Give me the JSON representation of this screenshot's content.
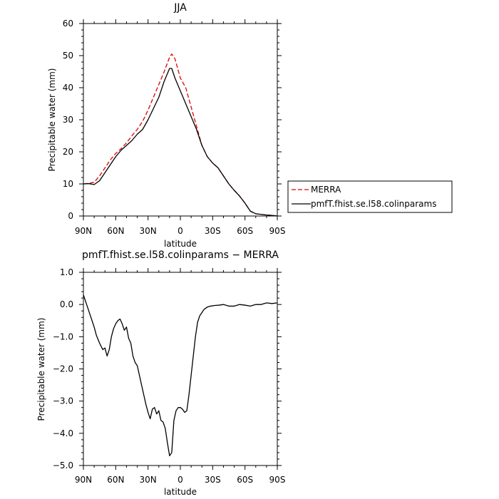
{
  "chart_data": [
    {
      "type": "line",
      "title": "JJA",
      "xlabel": "latitude",
      "ylabel": "Precipitable water (mm)",
      "xlim": [
        90,
        -90
      ],
      "ylim": [
        0,
        60
      ],
      "x_ticks": [
        90,
        60,
        30,
        0,
        -30,
        -60,
        -90
      ],
      "x_tick_labels": [
        "90N",
        "60N",
        "30N",
        "0",
        "30S",
        "60S",
        "90S"
      ],
      "y_ticks": [
        0,
        10,
        20,
        30,
        40,
        50,
        60
      ],
      "y_tick_labels": [
        "0",
        "10",
        "20",
        "30",
        "40",
        "50",
        "60"
      ],
      "legend_position": "right",
      "series": [
        {
          "name": "MERRA",
          "color": "#e00000",
          "dash": "dashed",
          "x": [
            90,
            85,
            80,
            75,
            70,
            65,
            60,
            55,
            50,
            45,
            40,
            35,
            30,
            25,
            20,
            15,
            10,
            8,
            5,
            0,
            -5,
            -10,
            -15,
            -20,
            -25,
            -30,
            -35,
            -40,
            -45,
            -50,
            -55,
            -60,
            -65,
            -70,
            -75,
            -80,
            -85,
            -90
          ],
          "values": [
            10,
            10.2,
            10.5,
            12.5,
            15,
            17.5,
            19.5,
            21,
            22.8,
            25,
            27,
            29.5,
            33,
            37,
            41,
            45,
            49.5,
            50.5,
            49,
            43,
            40,
            34,
            28,
            22,
            18.5,
            16.5,
            15,
            12.5,
            10,
            8,
            6.2,
            4,
            1.5,
            0.7,
            0.5,
            0.3,
            0.2,
            0
          ]
        },
        {
          "name": "pmfT.fhist.se.l58.colinparams",
          "color": "#000000",
          "dash": "solid",
          "x": [
            90,
            85,
            80,
            75,
            70,
            65,
            60,
            55,
            50,
            45,
            40,
            35,
            30,
            25,
            20,
            15,
            10,
            8,
            5,
            0,
            -5,
            -10,
            -15,
            -20,
            -25,
            -30,
            -35,
            -40,
            -45,
            -50,
            -55,
            -60,
            -65,
            -70,
            -75,
            -80,
            -85,
            -90
          ],
          "values": [
            10,
            10.1,
            9.8,
            11,
            13.5,
            16,
            18.5,
            20.5,
            22,
            23.5,
            25.5,
            27,
            30,
            33.5,
            37,
            42,
            46,
            46,
            43,
            39,
            35,
            31,
            27,
            22,
            18.5,
            16.5,
            15,
            12.5,
            10,
            8,
            6.2,
            4,
            1.5,
            0.7,
            0.5,
            0.3,
            0.2,
            0
          ]
        }
      ]
    },
    {
      "type": "line",
      "title": "pmfT.fhist.se.l58.colinparams − MERRA",
      "xlabel": "latitude",
      "ylabel": "Precipitable water (mm)",
      "xlim": [
        90,
        -90
      ],
      "ylim": [
        -5,
        1
      ],
      "x_ticks": [
        90,
        60,
        30,
        0,
        -30,
        -60,
        -90
      ],
      "x_tick_labels": [
        "90N",
        "60N",
        "30N",
        "0",
        "30S",
        "60S",
        "90S"
      ],
      "y_ticks": [
        1,
        0,
        -1,
        -2,
        -3,
        -4,
        -5
      ],
      "y_tick_labels": [
        "1.0",
        "0.0",
        "−1.0",
        "−2.0",
        "−3.0",
        "−4.0",
        "−5.0"
      ],
      "series": [
        {
          "color": "#000000",
          "dash": "solid",
          "x": [
            90,
            88,
            85,
            82,
            80,
            78,
            75,
            72,
            70,
            68,
            66,
            64,
            62,
            60,
            58,
            56,
            54,
            52,
            50,
            48,
            46,
            44,
            42,
            40,
            38,
            36,
            34,
            32,
            30,
            28,
            26,
            24,
            22,
            20,
            18,
            16,
            14,
            12,
            10,
            8,
            6,
            4,
            2,
            0,
            -2,
            -4,
            -6,
            -8,
            -10,
            -12,
            -14,
            -16,
            -18,
            -20,
            -22,
            -25,
            -28,
            -32,
            -36,
            -40,
            -45,
            -50,
            -55,
            -60,
            -65,
            -70,
            -75,
            -80,
            -85,
            -90
          ],
          "values": [
            0.3,
            0.1,
            -0.2,
            -0.5,
            -0.7,
            -0.95,
            -1.2,
            -1.4,
            -1.35,
            -1.6,
            -1.4,
            -1.0,
            -0.75,
            -0.6,
            -0.5,
            -0.45,
            -0.6,
            -0.8,
            -0.7,
            -1.05,
            -1.2,
            -1.6,
            -1.8,
            -1.9,
            -2.2,
            -2.5,
            -2.8,
            -3.1,
            -3.35,
            -3.55,
            -3.25,
            -3.2,
            -3.4,
            -3.3,
            -3.6,
            -3.65,
            -3.85,
            -4.3,
            -4.7,
            -4.6,
            -3.6,
            -3.3,
            -3.2,
            -3.2,
            -3.25,
            -3.35,
            -3.3,
            -2.8,
            -2.2,
            -1.6,
            -1.0,
            -0.55,
            -0.35,
            -0.25,
            -0.15,
            -0.08,
            -0.05,
            -0.03,
            -0.02,
            0.0,
            -0.05,
            -0.05,
            0.0,
            -0.02,
            -0.05,
            0.0,
            0.0,
            0.05,
            0.03,
            0.05
          ]
        }
      ]
    }
  ]
}
